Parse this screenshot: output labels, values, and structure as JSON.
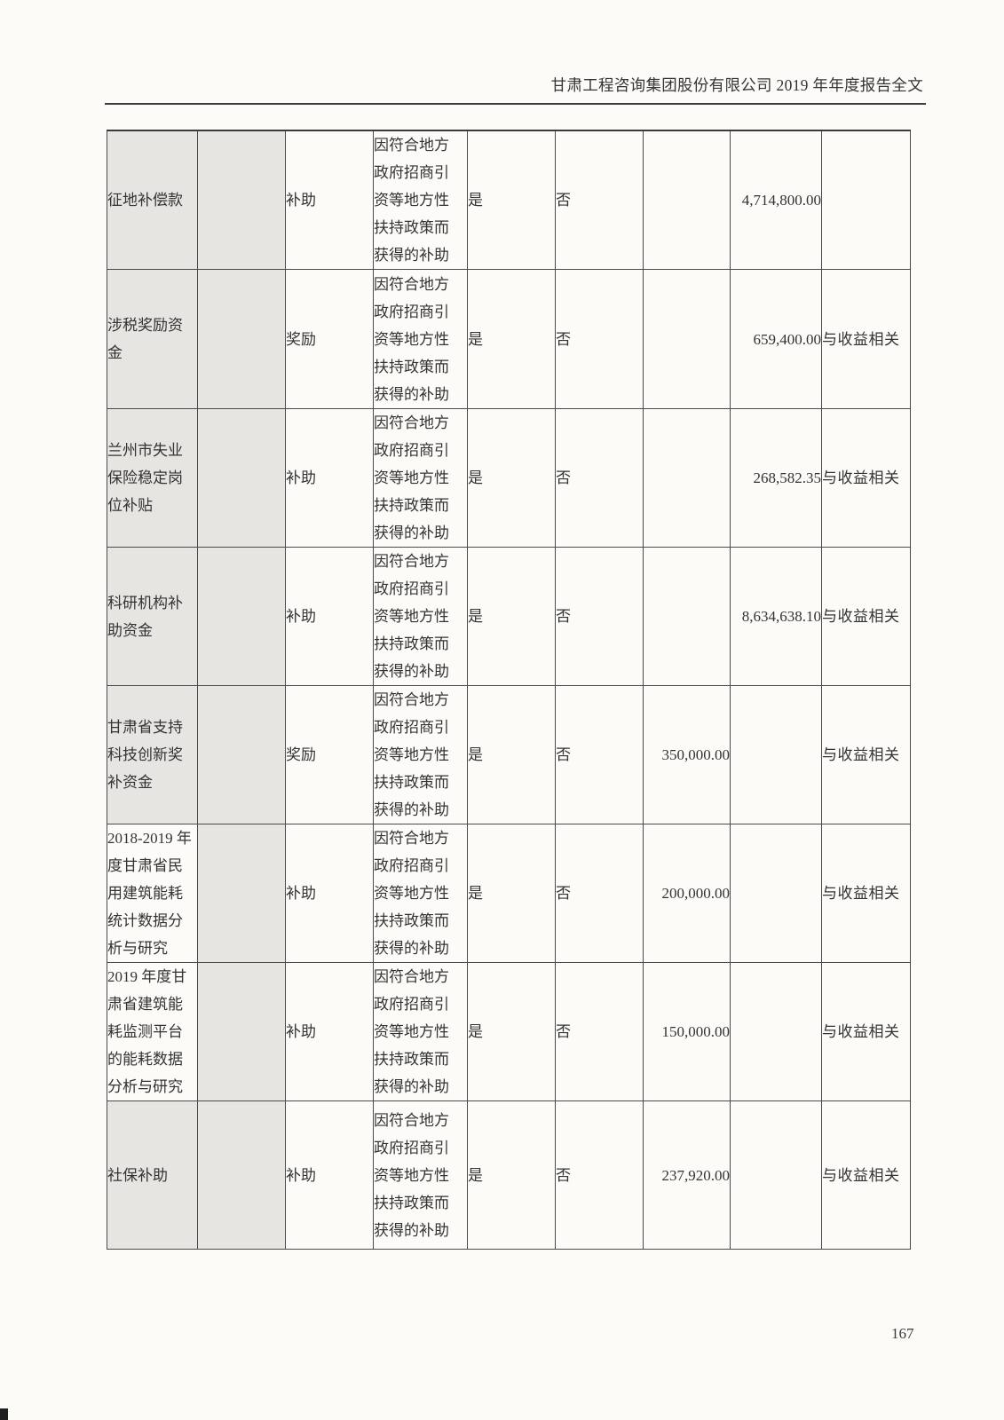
{
  "header": {
    "title": "甘肃工程咨询集团股份有限公司 2019 年年度报告全文"
  },
  "footer": {
    "page_number": "167"
  },
  "colors": {
    "shaded_cell": "#e7e5e1",
    "border": "#4a4a4a"
  },
  "table": {
    "rows": [
      {
        "name": "征地补偿款",
        "type": "补助",
        "reason": "因符合地方\n政府招商引\n资等地方性\n扶持政策而\n获得的补助",
        "affects_profit": "是",
        "non_recurring": "否",
        "amount_1": "",
        "amount_2": "4,714,800.00",
        "income_relation": ""
      },
      {
        "name": "涉税奖励资\n金",
        "type": "奖励",
        "reason": "因符合地方\n政府招商引\n资等地方性\n扶持政策而\n获得的补助",
        "affects_profit": "是",
        "non_recurring": "否",
        "amount_1": "",
        "amount_2": "659,400.00",
        "income_relation": "与收益相关"
      },
      {
        "name": "兰州市失业\n保险稳定岗\n位补贴",
        "type": "补助",
        "reason": "因符合地方\n政府招商引\n资等地方性\n扶持政策而\n获得的补助",
        "affects_profit": "是",
        "non_recurring": "否",
        "amount_1": "",
        "amount_2": "268,582.35",
        "income_relation": "与收益相关"
      },
      {
        "name": "科研机构补\n助资金",
        "type": "补助",
        "reason": "因符合地方\n政府招商引\n资等地方性\n扶持政策而\n获得的补助",
        "affects_profit": "是",
        "non_recurring": "否",
        "amount_1": "",
        "amount_2": "8,634,638.10",
        "income_relation": "与收益相关"
      },
      {
        "name": "甘肃省支持\n科技创新奖\n补资金",
        "type": "奖励",
        "reason": "因符合地方\n政府招商引\n资等地方性\n扶持政策而\n获得的补助",
        "affects_profit": "是",
        "non_recurring": "否",
        "amount_1": "350,000.00",
        "amount_2": "",
        "income_relation": "与收益相关"
      },
      {
        "name": "2018-2019 年\n度甘肃省民\n用建筑能耗\n统计数据分\n析与研究",
        "type": "补助",
        "reason": "因符合地方\n政府招商引\n资等地方性\n扶持政策而\n获得的补助",
        "affects_profit": "是",
        "non_recurring": "否",
        "amount_1": "200,000.00",
        "amount_2": "",
        "income_relation": "与收益相关"
      },
      {
        "name": "2019 年度甘\n肃省建筑能\n耗监测平台\n的能耗数据\n分析与研究",
        "type": "补助",
        "reason": "因符合地方\n政府招商引\n资等地方性\n扶持政策而\n获得的补助",
        "affects_profit": "是",
        "non_recurring": "否",
        "amount_1": "150,000.00",
        "amount_2": "",
        "income_relation": "与收益相关"
      },
      {
        "name": "社保补助",
        "type": "补助",
        "reason": "因符合地方\n政府招商引\n资等地方性\n扶持政策而\n获得的补助",
        "affects_profit": "是",
        "non_recurring": "否",
        "amount_1": "237,920.00",
        "amount_2": "",
        "income_relation": "与收益相关"
      }
    ]
  }
}
